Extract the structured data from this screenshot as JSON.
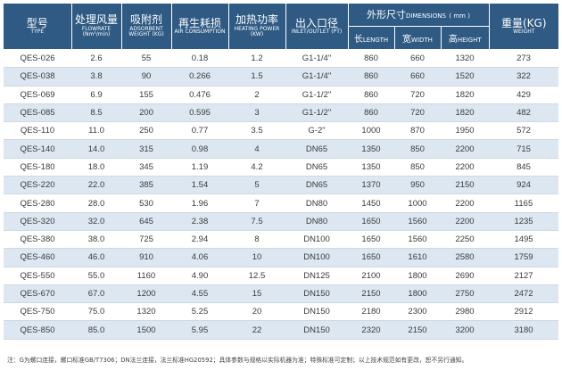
{
  "headers": {
    "model": {
      "zh": "型号",
      "en": "TYPE"
    },
    "flow": {
      "zh": "处理风量",
      "en": "FLOWRATE (Nm³/min)"
    },
    "adsorbent": {
      "zh": "吸附剂",
      "en": "ADSORBENT WEIGHT (KG)"
    },
    "regen": {
      "zh": "再生耗损",
      "en": "AIR CONSUMPTION"
    },
    "heating": {
      "zh": "加热功率",
      "en": "HEATING POWER (KW)"
    },
    "inlet": {
      "zh": "出入口径",
      "en": "INLET/OUTLET (PT)"
    },
    "dimensions": {
      "zh": "外形尺寸",
      "en": "DIMENSIONS",
      "unit": "( mm )"
    },
    "length": {
      "zh": "长",
      "en": "LENGTH"
    },
    "width": {
      "zh": "宽",
      "en": "WIDTH"
    },
    "height": {
      "zh": "高",
      "en": "HEIGHT"
    },
    "weight": {
      "zh": "重量(KG)",
      "en": "WEIGHT"
    }
  },
  "rows": [
    {
      "model": "QES-026",
      "flow": "2.6",
      "adsorbent": "55",
      "regen": "0.18",
      "heating": "1.2",
      "inlet": "G1-1/4\"",
      "length": "860",
      "width": "660",
      "height": "1320",
      "weight": "273"
    },
    {
      "model": "QES-038",
      "flow": "3.8",
      "adsorbent": "90",
      "regen": "0.266",
      "heating": "1.5",
      "inlet": "G1-1/4\"",
      "length": "860",
      "width": "660",
      "height": "1520",
      "weight": "322"
    },
    {
      "model": "QES-069",
      "flow": "6.9",
      "adsorbent": "155",
      "regen": "0.476",
      "heating": "2",
      "inlet": "G1-1/2\"",
      "length": "860",
      "width": "720",
      "height": "1820",
      "weight": "429"
    },
    {
      "model": "QES-085",
      "flow": "8.5",
      "adsorbent": "200",
      "regen": "0.595",
      "heating": "3",
      "inlet": "G1-1/2\"",
      "length": "860",
      "width": "720",
      "height": "1820",
      "weight": "482"
    },
    {
      "model": "QES-110",
      "flow": "11.0",
      "adsorbent": "250",
      "regen": "0.77",
      "heating": "3.5",
      "inlet": "G-2\"",
      "length": "1000",
      "width": "870",
      "height": "1950",
      "weight": "572"
    },
    {
      "model": "QES-140",
      "flow": "14.0",
      "adsorbent": "315",
      "regen": "0.98",
      "heating": "4",
      "inlet": "DN65",
      "length": "1350",
      "width": "850",
      "height": "2200",
      "weight": "715"
    },
    {
      "model": "QES-180",
      "flow": "18.0",
      "adsorbent": "345",
      "regen": "1.19",
      "heating": "4.2",
      "inlet": "DN65",
      "length": "1350",
      "width": "850",
      "height": "2200",
      "weight": "845"
    },
    {
      "model": "QES-220",
      "flow": "22.0",
      "adsorbent": "385",
      "regen": "1.54",
      "heating": "5",
      "inlet": "DN65",
      "length": "1370",
      "width": "950",
      "height": "2150",
      "weight": "924"
    },
    {
      "model": "QES-280",
      "flow": "28.0",
      "adsorbent": "530",
      "regen": "1.96",
      "heating": "7",
      "inlet": "DN80",
      "length": "1450",
      "width": "1000",
      "height": "2200",
      "weight": "1165"
    },
    {
      "model": "QES-320",
      "flow": "32.0",
      "adsorbent": "645",
      "regen": "2.38",
      "heating": "7.5",
      "inlet": "DN80",
      "length": "1650",
      "width": "1560",
      "height": "2200",
      "weight": "1235"
    },
    {
      "model": "QES-380",
      "flow": "38.0",
      "adsorbent": "725",
      "regen": "2.94",
      "heating": "8",
      "inlet": "DN100",
      "length": "1650",
      "width": "1560",
      "height": "2250",
      "weight": "1495"
    },
    {
      "model": "QES-460",
      "flow": "46.0",
      "adsorbent": "910",
      "regen": "4.06",
      "heating": "10",
      "inlet": "DN100",
      "length": "1650",
      "width": "1610",
      "height": "2580",
      "weight": "1759"
    },
    {
      "model": "QES-550",
      "flow": "55.0",
      "adsorbent": "1160",
      "regen": "4.90",
      "heating": "12.5",
      "inlet": "DN125",
      "length": "2100",
      "width": "1800",
      "height": "2690",
      "weight": "2127"
    },
    {
      "model": "QES-670",
      "flow": "67.0",
      "adsorbent": "1200",
      "regen": "4.55",
      "heating": "15",
      "inlet": "DN150",
      "length": "2150",
      "width": "1800",
      "height": "2750",
      "weight": "2472"
    },
    {
      "model": "QES-750",
      "flow": "75.0",
      "adsorbent": "1320",
      "regen": "5.25",
      "heating": "20",
      "inlet": "DN150",
      "length": "2180",
      "width": "2300",
      "height": "2980",
      "weight": "2912"
    },
    {
      "model": "QES-850",
      "flow": "85.0",
      "adsorbent": "1500",
      "regen": "5.95",
      "heating": "22",
      "inlet": "DN150",
      "length": "2320",
      "width": "2150",
      "height": "3200",
      "weight": "3180"
    }
  ],
  "note": "注：G为螺口连接，螺口标准GB/T7306；DN法兰连接，法兰标准HG20592；具体参数与规格以实际机器为准；特殊标准可定制；以上技术规范如有更改，恕不另行通知。",
  "colors": {
    "header_bg": "#2e5a84",
    "row_alt": "#dde7f1",
    "row": "#ffffff"
  }
}
